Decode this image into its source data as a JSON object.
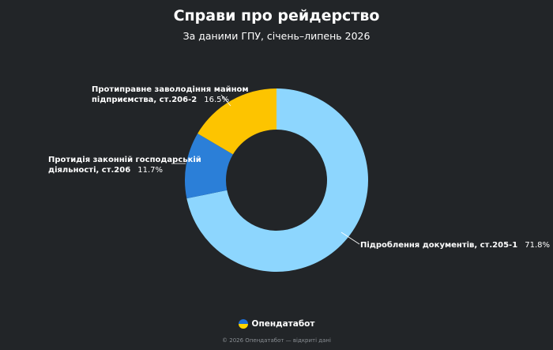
{
  "header": {
    "title": "Справи про рейдерство",
    "subtitle": "За даними ГПУ, січень–липень 2026"
  },
  "chart_data": {
    "type": "pie",
    "donut": true,
    "title": "Справи про рейдерство",
    "subtitle": "За даними ГПУ, січень–липень 2026",
    "legend": "none",
    "slices": [
      {
        "label": "Підроблення документів, ст.205-1",
        "value": 71.8,
        "value_label": "71.8%",
        "color": "#8dd6fe"
      },
      {
        "label": "Протидія законній господарській діяльності, ст.206",
        "value": 11.7,
        "value_label": "11.7%",
        "color": "#2b7fd8"
      },
      {
        "label": "Протиправне заволодіння майном підприємства, ст.206-2",
        "value": 16.5,
        "value_label": "16.5%",
        "color": "#fdc400"
      }
    ]
  },
  "labels": {
    "s0": {
      "line1": "Підроблення документів, ст.205-1",
      "value": "71.8%"
    },
    "s1": {
      "line1": "Протидія законній господарській",
      "line2": "діяльності, ст.206",
      "value": "11.7%"
    },
    "s2": {
      "line1": "Протиправне заволодіння майном",
      "line2": "підприємства, ст.206-2",
      "value": "16.5%"
    }
  },
  "brand": {
    "name": "Опендатабот",
    "icon": "ukraine-flag-icon",
    "flag_colors": [
      "#1f6fd6",
      "#ffd500"
    ]
  },
  "footer": {
    "text": "© 2026 Опендатабот — відкриті дані"
  }
}
